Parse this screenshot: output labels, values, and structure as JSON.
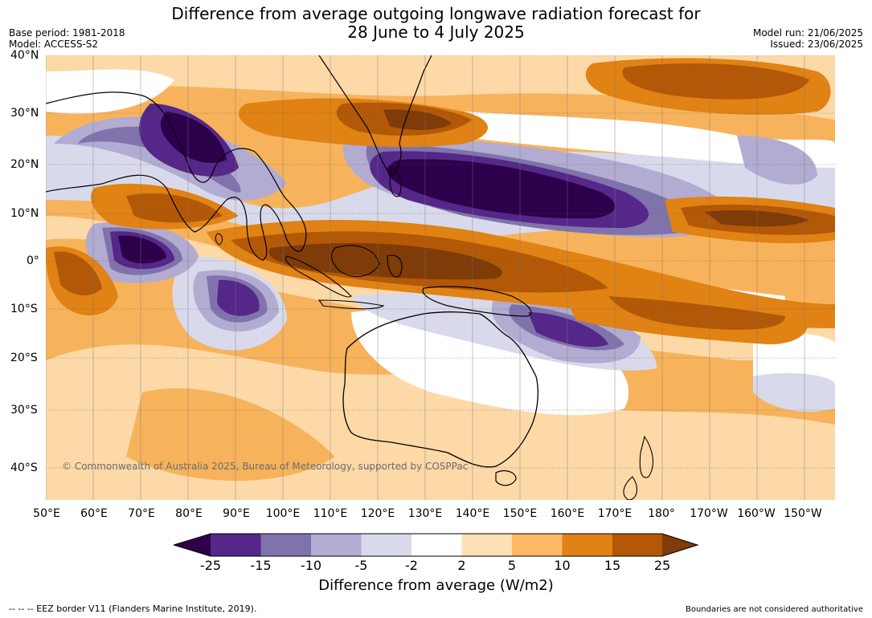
{
  "header": {
    "title_line1": "Difference from average outgoing longwave radiation forecast for",
    "title_line2": "28 June to 4 July 2025",
    "base_period": "Base period: 1981-2018",
    "model": "Model: ACCESS-S2",
    "model_run": "Model run: 21/06/2025",
    "issued": "Issued: 23/06/2025"
  },
  "map": {
    "lon_labels": [
      "50°E",
      "60°E",
      "70°E",
      "80°E",
      "90°E",
      "100°E",
      "110°E",
      "120°E",
      "130°E",
      "140°E",
      "150°E",
      "160°E",
      "170°E",
      "180°",
      "170°W",
      "160°W",
      "150°W"
    ],
    "lat_labels": [
      "40°N",
      "30°N",
      "20°N",
      "10°N",
      "0°",
      "10°S",
      "20°S",
      "30°S",
      "40°S"
    ],
    "copyright": "© Commonwealth of Australia 2025, Bureau of Meteorology, supported by COSPPac"
  },
  "legend": {
    "colors": [
      "#2d004b",
      "#542788",
      "#8073ac",
      "#b2abd2",
      "#d8daeb",
      "#ffffff",
      "#fee0b6",
      "#fdb863",
      "#e08214",
      "#b35806",
      "#7f3b08"
    ],
    "labels": [
      "-25",
      "-15",
      "-10",
      "-5",
      "-2",
      "2",
      "5",
      "10",
      "15",
      "25"
    ],
    "title": "Difference from average (W/m2)"
  },
  "footer": {
    "eez": "--  --  -- EEZ border V11 (Flanders Marine Institute, 2019).",
    "disclaimer": "Boundaries are not considered authoritative"
  }
}
